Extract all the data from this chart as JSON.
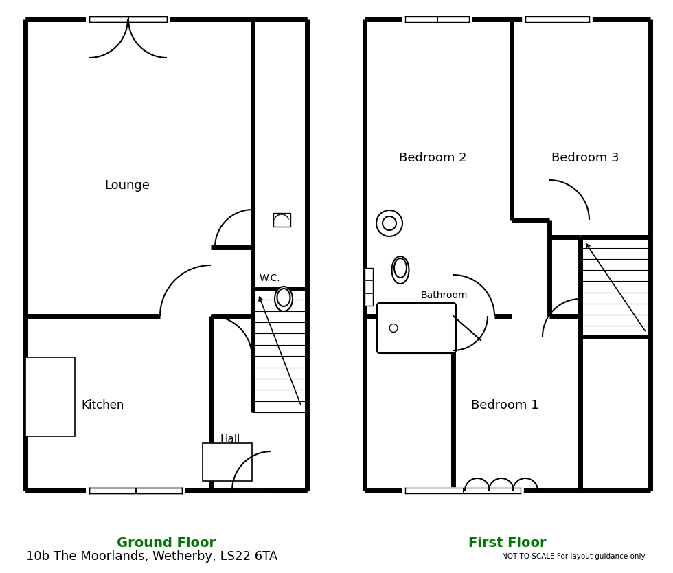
{
  "title": "10b The Moorlands, Wetherby, LS22 6TA",
  "subtitle": "NOT TO SCALE For layout guidance only",
  "ground_floor_label": "Ground Floor",
  "first_floor_label": "First Floor",
  "wall_color": "#000000",
  "wall_lw": 5,
  "bg_color": "#ffffff",
  "thin_lw": 1.2,
  "label_color": "#007700",
  "text_color": "#000000",
  "room_labels": {
    "lounge": "Lounge",
    "kitchen": "Kitchen",
    "hall": "Hall",
    "wc": "W.C.",
    "bedroom1": "Bedroom 1",
    "bedroom2": "Bedroom 2",
    "bedroom3": "Bedroom 3",
    "bathroom": "Bathroom"
  }
}
